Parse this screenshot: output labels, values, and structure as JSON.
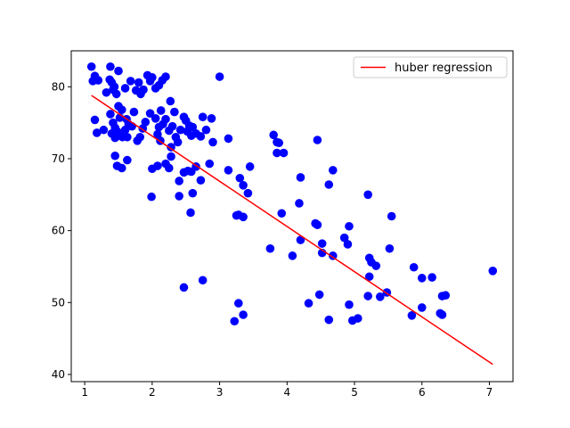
{
  "chart_data": {
    "type": "scatter",
    "title": "",
    "xlabel": "",
    "ylabel": "",
    "xlim": [
      0.8,
      7.35
    ],
    "ylim": [
      39,
      85
    ],
    "grid": false,
    "legend_position": "top-right",
    "xticks": [
      1,
      2,
      3,
      4,
      5,
      6,
      7
    ],
    "yticks": [
      40,
      50,
      60,
      70,
      80
    ],
    "series": [
      {
        "type": "scatter",
        "color": "#0000ff",
        "points": [
          [
            1.1,
            82.8
          ],
          [
            1.12,
            80.8
          ],
          [
            1.15,
            81.5
          ],
          [
            1.2,
            80.9
          ],
          [
            1.15,
            75.4
          ],
          [
            1.18,
            73.6
          ],
          [
            1.28,
            74.0
          ],
          [
            1.32,
            79.2
          ],
          [
            1.38,
            82.8
          ],
          [
            1.37,
            81.0
          ],
          [
            1.4,
            80.6
          ],
          [
            1.42,
            79.6
          ],
          [
            1.44,
            80.0
          ],
          [
            1.47,
            79.0
          ],
          [
            1.5,
            82.2
          ],
          [
            1.38,
            76.2
          ],
          [
            1.42,
            75.0
          ],
          [
            1.45,
            74.3
          ],
          [
            1.48,
            73.8
          ],
          [
            1.4,
            73.5
          ],
          [
            1.45,
            72.9
          ],
          [
            1.52,
            73.2
          ],
          [
            1.5,
            77.3
          ],
          [
            1.55,
            76.8
          ],
          [
            1.52,
            75.7
          ],
          [
            1.56,
            73.0
          ],
          [
            1.6,
            79.8
          ],
          [
            1.6,
            74.0
          ],
          [
            1.62,
            75.5
          ],
          [
            1.65,
            74.8
          ],
          [
            1.63,
            73.0
          ],
          [
            1.68,
            80.8
          ],
          [
            1.7,
            74.5
          ],
          [
            1.73,
            76.5
          ],
          [
            1.76,
            79.5
          ],
          [
            1.8,
            80.6
          ],
          [
            1.83,
            79.0
          ],
          [
            1.87,
            79.6
          ],
          [
            1.78,
            72.5
          ],
          [
            1.82,
            73.0
          ],
          [
            1.86,
            74.2
          ],
          [
            1.9,
            75.1
          ],
          [
            1.45,
            70.4
          ],
          [
            1.48,
            69.0
          ],
          [
            1.55,
            68.7
          ],
          [
            1.63,
            69.8
          ],
          [
            1.93,
            81.6
          ],
          [
            1.97,
            80.8
          ],
          [
            2.0,
            81.3
          ],
          [
            2.05,
            79.8
          ],
          [
            2.1,
            80.2
          ],
          [
            2.15,
            80.9
          ],
          [
            2.2,
            81.4
          ],
          [
            1.97,
            76.3
          ],
          [
            2.05,
            75.6
          ],
          [
            2.1,
            74.4
          ],
          [
            2.13,
            76.7
          ],
          [
            2.08,
            73.4
          ],
          [
            2.12,
            72.5
          ],
          [
            2.16,
            74.8
          ],
          [
            2.2,
            75.5
          ],
          [
            2.25,
            73.9
          ],
          [
            2.28,
            71.6
          ],
          [
            2.27,
            78.0
          ],
          [
            2.3,
            74.5
          ],
          [
            2.33,
            76.5
          ],
          [
            2.0,
            68.6
          ],
          [
            2.08,
            69.0
          ],
          [
            2.2,
            69.3
          ],
          [
            2.25,
            68.7
          ],
          [
            2.28,
            70.3
          ],
          [
            1.99,
            64.7
          ],
          [
            2.35,
            73.0
          ],
          [
            2.38,
            72.3
          ],
          [
            2.42,
            74.0
          ],
          [
            2.47,
            75.8
          ],
          [
            2.5,
            75.3
          ],
          [
            2.52,
            73.8
          ],
          [
            2.55,
            74.6
          ],
          [
            2.58,
            73.2
          ],
          [
            2.6,
            74.4
          ],
          [
            2.65,
            73.5
          ],
          [
            2.72,
            73.1
          ],
          [
            2.75,
            75.8
          ],
          [
            2.8,
            74.0
          ],
          [
            2.88,
            75.6
          ],
          [
            2.9,
            72.3
          ],
          [
            2.4,
            66.9
          ],
          [
            2.47,
            68.1
          ],
          [
            2.53,
            68.3
          ],
          [
            2.58,
            68.2
          ],
          [
            2.65,
            68.9
          ],
          [
            2.72,
            67.0
          ],
          [
            2.85,
            69.3
          ],
          [
            2.4,
            64.8
          ],
          [
            2.6,
            65.2
          ],
          [
            2.57,
            62.5
          ],
          [
            2.47,
            52.1
          ],
          [
            2.75,
            53.1
          ],
          [
            3.0,
            81.4
          ],
          [
            3.13,
            72.8
          ],
          [
            3.13,
            68.4
          ],
          [
            3.25,
            62.1
          ],
          [
            3.28,
            62.2
          ],
          [
            3.3,
            67.3
          ],
          [
            3.35,
            66.3
          ],
          [
            3.35,
            61.9
          ],
          [
            3.42,
            65.2
          ],
          [
            3.45,
            68.9
          ],
          [
            3.28,
            49.9
          ],
          [
            3.22,
            47.4
          ],
          [
            3.35,
            48.3
          ],
          [
            3.8,
            73.3
          ],
          [
            3.85,
            72.3
          ],
          [
            3.88,
            72.2
          ],
          [
            3.85,
            70.8
          ],
          [
            3.95,
            70.8
          ],
          [
            3.92,
            62.4
          ],
          [
            4.2,
            67.4
          ],
          [
            4.18,
            63.8
          ],
          [
            4.42,
            61.0
          ],
          [
            4.45,
            60.8
          ],
          [
            4.2,
            58.7
          ],
          [
            4.08,
            56.5
          ],
          [
            3.75,
            57.5
          ],
          [
            4.45,
            72.6
          ],
          [
            4.68,
            68.4
          ],
          [
            4.62,
            66.4
          ],
          [
            4.52,
            58.2
          ],
          [
            4.52,
            56.9
          ],
          [
            4.68,
            56.5
          ],
          [
            4.32,
            49.9
          ],
          [
            4.48,
            51.1
          ],
          [
            4.62,
            47.6
          ],
          [
            4.85,
            59.0
          ],
          [
            4.9,
            58.1
          ],
          [
            4.92,
            60.6
          ],
          [
            4.92,
            49.7
          ],
          [
            4.97,
            47.5
          ],
          [
            5.05,
            47.8
          ],
          [
            5.2,
            65.0
          ],
          [
            5.22,
            56.2
          ],
          [
            5.25,
            55.6
          ],
          [
            5.32,
            55.1
          ],
          [
            5.22,
            53.6
          ],
          [
            5.2,
            50.9
          ],
          [
            5.38,
            50.8
          ],
          [
            5.48,
            51.4
          ],
          [
            5.55,
            62.0
          ],
          [
            5.52,
            57.5
          ],
          [
            5.85,
            48.2
          ],
          [
            5.88,
            54.9
          ],
          [
            6.0,
            53.4
          ],
          [
            6.0,
            49.3
          ],
          [
            6.15,
            53.5
          ],
          [
            6.27,
            48.5
          ],
          [
            6.3,
            50.9
          ],
          [
            6.35,
            51.0
          ],
          [
            6.3,
            48.3
          ],
          [
            7.05,
            54.4
          ]
        ]
      },
      {
        "type": "line",
        "name": "huber regression",
        "color": "#ff0000",
        "x": [
          1.1,
          7.05
        ],
        "y": [
          78.8,
          41.4
        ]
      }
    ]
  }
}
